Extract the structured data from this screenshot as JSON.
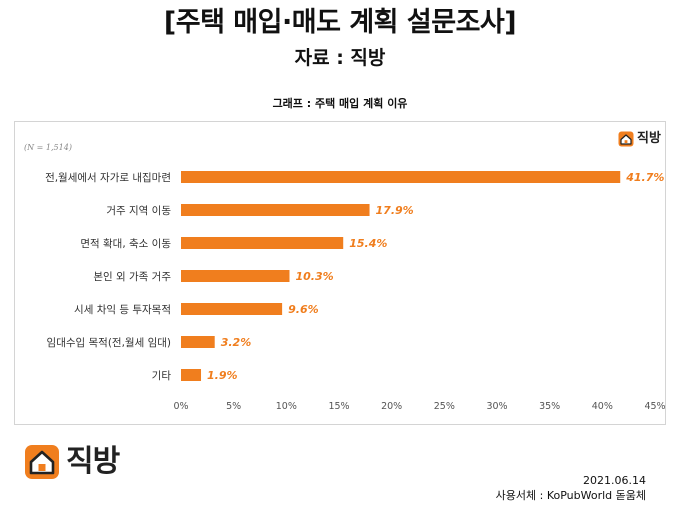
{
  "header": {
    "title": "[주택 매입·매도 계획 설문조사]",
    "source": "자료 : 직방"
  },
  "brand": {
    "name": "직방",
    "color": "#f07e1e"
  },
  "footer": {
    "date": "2021.06.14",
    "font_credit": "사용서체 : KoPubWorld 돋움체"
  },
  "chart_data": {
    "type": "bar",
    "orientation": "horizontal",
    "title": "그래프 : 주택 매입 계획 이유",
    "note": "(N = 1,514)",
    "categories": [
      "전,월세에서 자가로 내집마련",
      "거주 지역 이동",
      "면적 확대, 축소 이동",
      "본인 외 가족 거주",
      "시세 차익 등 투자목적",
      "임대수입 목적(전,월세 임대)",
      "기타"
    ],
    "values": [
      41.7,
      17.9,
      15.4,
      10.3,
      9.6,
      3.2,
      1.9
    ],
    "value_labels": [
      "41.7%",
      "17.9%",
      "15.4%",
      "10.3%",
      "9.6%",
      "3.2%",
      "1.9%"
    ],
    "xlim": [
      0,
      45
    ],
    "xticks": [
      0,
      5,
      10,
      15,
      20,
      25,
      30,
      35,
      40,
      45
    ],
    "xtick_labels": [
      "0%",
      "5%",
      "10%",
      "15%",
      "20%",
      "25%",
      "30%",
      "35%",
      "40%",
      "45%"
    ],
    "bar_color": "#f07e1e",
    "grid": false,
    "legend": "none"
  }
}
